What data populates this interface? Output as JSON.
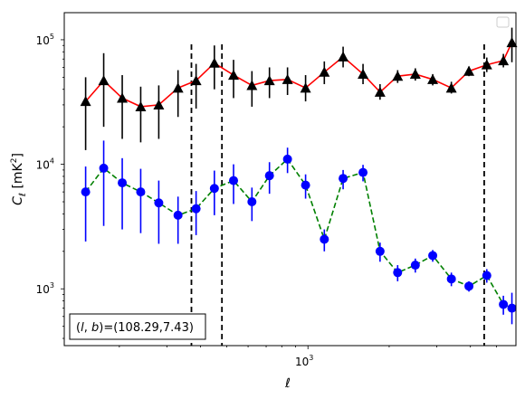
{
  "chart_data": {
    "type": "scatter",
    "xscale": "log",
    "yscale": "log",
    "xlabel": "ℓ",
    "ylabel": "C_ℓ [mK²]",
    "xlim": [
      125,
      5900
    ],
    "ylim": [
      350,
      165000
    ],
    "x_ticks": [
      {
        "value": 1000,
        "base": "10",
        "exp": "3"
      }
    ],
    "y_ticks": [
      {
        "value": 1000,
        "base": "10",
        "exp": "3"
      },
      {
        "value": 10000,
        "base": "10",
        "exp": "4"
      },
      {
        "value": 100000,
        "base": "10",
        "exp": "5"
      }
    ],
    "legend": {
      "placement": "top-right",
      "entries": []
    },
    "annotation": "(l,b)=(108.29,7.43)",
    "annotation_parts": {
      "l": "l",
      "b": "b",
      "values": "=(108.29,7.43)"
    },
    "vlines": [
      370,
      480,
      4500
    ],
    "series": [
      {
        "marker": "triangle",
        "marker_color": "#000000",
        "line_color": "#ff0000",
        "line_style": "solid",
        "errorbar_color": "#000000",
        "points": [
          {
            "x": 150,
            "y": 32000,
            "lo": 13000,
            "hi": 50000
          },
          {
            "x": 175,
            "y": 47000,
            "lo": 20000,
            "hi": 78000
          },
          {
            "x": 205,
            "y": 34000,
            "lo": 16000,
            "hi": 52000
          },
          {
            "x": 240,
            "y": 29000,
            "lo": 15000,
            "hi": 42000
          },
          {
            "x": 280,
            "y": 30000,
            "lo": 16000,
            "hi": 43000
          },
          {
            "x": 330,
            "y": 41000,
            "lo": 24000,
            "hi": 57000
          },
          {
            "x": 385,
            "y": 47000,
            "lo": 28000,
            "hi": 64000
          },
          {
            "x": 450,
            "y": 65000,
            "lo": 40000,
            "hi": 90000
          },
          {
            "x": 530,
            "y": 52000,
            "lo": 34000,
            "hi": 69000
          },
          {
            "x": 620,
            "y": 43000,
            "lo": 29000,
            "hi": 56000
          },
          {
            "x": 720,
            "y": 47000,
            "lo": 34000,
            "hi": 60000
          },
          {
            "x": 840,
            "y": 48000,
            "lo": 36000,
            "hi": 60000
          },
          {
            "x": 980,
            "y": 41000,
            "lo": 32000,
            "hi": 52000
          },
          {
            "x": 1150,
            "y": 55000,
            "lo": 44000,
            "hi": 67000
          },
          {
            "x": 1350,
            "y": 73000,
            "lo": 60000,
            "hi": 88000
          },
          {
            "x": 1600,
            "y": 53000,
            "lo": 44000,
            "hi": 64000
          },
          {
            "x": 1850,
            "y": 38000,
            "lo": 33000,
            "hi": 44000
          },
          {
            "x": 2150,
            "y": 51000,
            "lo": 45000,
            "hi": 57000
          },
          {
            "x": 2500,
            "y": 53000,
            "lo": 47000,
            "hi": 59000
          },
          {
            "x": 2900,
            "y": 48000,
            "lo": 43000,
            "hi": 53000
          },
          {
            "x": 3400,
            "y": 41000,
            "lo": 37000,
            "hi": 46000
          },
          {
            "x": 3950,
            "y": 56000,
            "lo": 51000,
            "hi": 61000
          },
          {
            "x": 4600,
            "y": 63000,
            "lo": 55000,
            "hi": 72000
          },
          {
            "x": 5300,
            "y": 68000,
            "lo": 60000,
            "hi": 77000
          },
          {
            "x": 5700,
            "y": 95000,
            "lo": 66000,
            "hi": 125000
          }
        ]
      },
      {
        "marker": "circle",
        "marker_color": "#0000ff",
        "line_color": "#008000",
        "line_style": "dashed",
        "errorbar_color": "#0000ff",
        "points": [
          {
            "x": 150,
            "y": 6000,
            "lo": 2400,
            "hi": 9600
          },
          {
            "x": 175,
            "y": 9300,
            "lo": 3200,
            "hi": 15500
          },
          {
            "x": 205,
            "y": 7100,
            "lo": 3000,
            "hi": 11200
          },
          {
            "x": 240,
            "y": 6000,
            "lo": 2800,
            "hi": 9200
          },
          {
            "x": 280,
            "y": 4900,
            "lo": 2300,
            "hi": 7400
          },
          {
            "x": 330,
            "y": 3900,
            "lo": 2300,
            "hi": 5500
          },
          {
            "x": 385,
            "y": 4400,
            "lo": 2700,
            "hi": 6100
          },
          {
            "x": 450,
            "y": 6400,
            "lo": 3900,
            "hi": 8900
          },
          {
            "x": 530,
            "y": 7400,
            "lo": 4800,
            "hi": 10000
          },
          {
            "x": 620,
            "y": 5000,
            "lo": 3500,
            "hi": 6500
          },
          {
            "x": 720,
            "y": 8100,
            "lo": 5800,
            "hi": 10400
          },
          {
            "x": 840,
            "y": 11000,
            "lo": 8500,
            "hi": 13600
          },
          {
            "x": 980,
            "y": 6800,
            "lo": 5300,
            "hi": 8300
          },
          {
            "x": 1150,
            "y": 2500,
            "lo": 2000,
            "hi": 3000
          },
          {
            "x": 1350,
            "y": 7700,
            "lo": 6300,
            "hi": 9000
          },
          {
            "x": 1600,
            "y": 8600,
            "lo": 7300,
            "hi": 9900
          },
          {
            "x": 1850,
            "y": 2000,
            "lo": 1650,
            "hi": 2350
          },
          {
            "x": 2150,
            "y": 1350,
            "lo": 1150,
            "hi": 1550
          },
          {
            "x": 2500,
            "y": 1550,
            "lo": 1350,
            "hi": 1750
          },
          {
            "x": 2900,
            "y": 1850,
            "lo": 1650,
            "hi": 2050
          },
          {
            "x": 3400,
            "y": 1200,
            "lo": 1050,
            "hi": 1350
          },
          {
            "x": 3950,
            "y": 1050,
            "lo": 950,
            "hi": 1150
          },
          {
            "x": 4600,
            "y": 1280,
            "lo": 1120,
            "hi": 1440
          },
          {
            "x": 5300,
            "y": 750,
            "lo": 620,
            "hi": 880
          },
          {
            "x": 5700,
            "y": 700,
            "lo": 520,
            "hi": 930
          }
        ]
      }
    ]
  }
}
